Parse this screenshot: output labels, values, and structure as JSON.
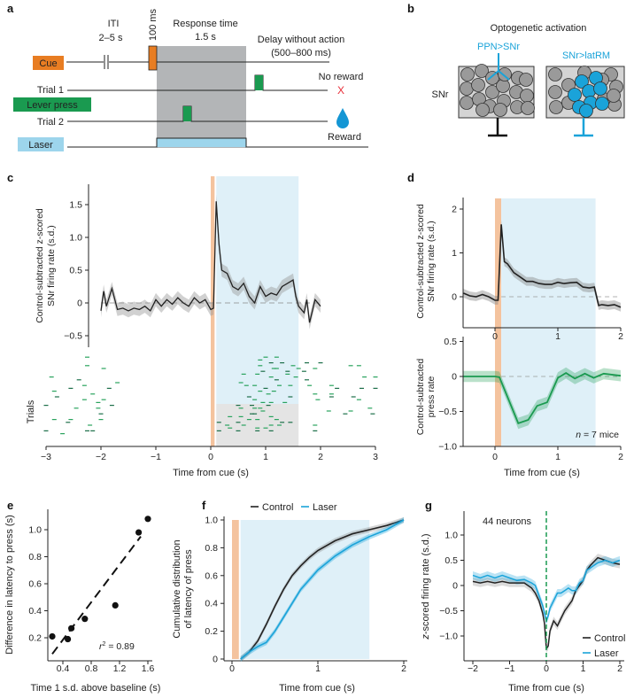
{
  "panel_labels": {
    "a": "a",
    "b": "b",
    "c": "c",
    "d": "d",
    "e": "e",
    "f": "f",
    "g": "g"
  },
  "diagram_a": {
    "iti": "ITI",
    "iti_range": "2–5 s",
    "pulse": "100 ms",
    "response_title": "Response time",
    "response_duration": "1.5 s",
    "delay_title": "Delay without action",
    "delay_range": "(500–800 ms)",
    "cue": "Cue",
    "trial1": "Trial 1",
    "lever_press": "Lever press",
    "trial2": "Trial 2",
    "laser": "Laser",
    "no_reward": "No reward",
    "no_reward_mark": "X",
    "reward": "Reward",
    "colors": {
      "cue": "#e87d22",
      "lever": "#1a9a50",
      "laser": "#9dd5ec",
      "response": "#b3b5b7",
      "reward": "#1496d4",
      "no_reward": "#e8303a"
    }
  },
  "diagram_b": {
    "title": "Optogenetic activation",
    "left_label": "PPN>SNr",
    "right_label": "SNr>latRM",
    "region": "SNr",
    "colors": {
      "neuron": "#9a9a9a",
      "activated": "#1aa3d9",
      "box": "#d4d4d4"
    }
  },
  "colors": {
    "cue_window": "#f4c39e",
    "laser_window": "#dff0f8",
    "no_laser_window": "#e4e4e4",
    "control": "#222222",
    "laser": "#1aa3d9",
    "press": "#1a9a50"
  },
  "chart_data": [
    {
      "id": "c_top",
      "type": "line",
      "ylabel": [
        "Control-subtracted z-scored",
        "SNr firing rate (s.d.)"
      ],
      "ylim": [
        -0.7,
        1.8
      ],
      "yticks": [
        -0.5,
        0,
        0.5,
        1.0,
        1.5
      ],
      "cue_window": [
        0,
        0.07
      ],
      "laser_window": [
        0.1,
        1.6
      ],
      "x": [
        -2.0,
        -1.95,
        -1.9,
        -1.8,
        -1.7,
        -1.6,
        -1.5,
        -1.4,
        -1.3,
        -1.2,
        -1.1,
        -1.0,
        -0.9,
        -0.8,
        -0.7,
        -0.6,
        -0.5,
        -0.4,
        -0.3,
        -0.2,
        -0.1,
        0.0,
        0.05,
        0.1,
        0.15,
        0.2,
        0.3,
        0.4,
        0.5,
        0.6,
        0.7,
        0.8,
        0.9,
        1.0,
        1.1,
        1.2,
        1.3,
        1.4,
        1.5,
        1.55,
        1.6,
        1.7,
        1.75,
        1.8,
        1.9,
        2.0
      ],
      "y": [
        -0.12,
        0.18,
        -0.05,
        0.22,
        -0.1,
        -0.08,
        -0.12,
        -0.08,
        -0.1,
        -0.05,
        -0.12,
        0.05,
        -0.05,
        0.05,
        -0.02,
        0.08,
        0.0,
        -0.05,
        0.08,
        0.0,
        0.05,
        -0.1,
        -0.08,
        1.55,
        0.9,
        0.5,
        0.45,
        0.25,
        0.2,
        0.3,
        0.1,
        0.0,
        0.25,
        0.1,
        0.15,
        0.12,
        0.25,
        0.3,
        0.35,
        0.1,
        -0.05,
        -0.15,
        0.05,
        -0.3,
        0.05,
        -0.05
      ]
    },
    {
      "id": "c_raster",
      "type": "raster",
      "ylabel": "Trials",
      "xlabel": "Time from cue (s)",
      "xlim": [
        -3,
        3
      ],
      "xticks": [
        "−3",
        "−2",
        "−1",
        "0",
        "1",
        "2",
        "3"
      ],
      "xtick_values": [
        -3,
        -2,
        -1,
        0,
        1,
        2,
        3
      ],
      "laser_trials": [
        1,
        17
      ],
      "no_laser_trials": [
        18,
        30
      ],
      "presses": [
        [
          -2.25,
          1
        ],
        [
          -2.25,
          4
        ],
        [
          -1.95,
          5
        ],
        [
          -2.9,
          8
        ],
        [
          -2.4,
          9
        ],
        [
          -1.7,
          10
        ],
        [
          -2.3,
          11
        ],
        [
          -2.55,
          12
        ],
        [
          -1.85,
          12
        ],
        [
          -2.85,
          13
        ],
        [
          -2.15,
          14
        ],
        [
          -2.8,
          15
        ],
        [
          -2.3,
          16
        ],
        [
          -2.05,
          17
        ],
        [
          -1.95,
          16
        ],
        [
          -3.0,
          18
        ],
        [
          -2.45,
          19
        ],
        [
          -2.05,
          19
        ],
        [
          -1.8,
          18
        ],
        [
          -2.0,
          21
        ],
        [
          -2.85,
          23
        ],
        [
          -2.55,
          23
        ],
        [
          -2.0,
          23
        ],
        [
          -2.6,
          24
        ],
        [
          -2.2,
          25
        ],
        [
          -3.0,
          27
        ],
        [
          -2.25,
          27
        ],
        [
          -2.15,
          27
        ],
        [
          -2.7,
          28
        ],
        [
          1.0,
          1
        ],
        [
          1.2,
          1
        ],
        [
          0.9,
          2
        ],
        [
          1.1,
          3
        ],
        [
          1.3,
          3
        ],
        [
          0.9,
          4
        ],
        [
          1.5,
          4
        ],
        [
          1.75,
          3
        ],
        [
          2.0,
          3
        ],
        [
          2.55,
          4
        ],
        [
          2.7,
          4
        ],
        [
          1.2,
          5
        ],
        [
          1.15,
          5
        ],
        [
          0.95,
          6
        ],
        [
          1.4,
          6
        ],
        [
          1.6,
          5
        ],
        [
          1.7,
          6
        ],
        [
          1.9,
          5
        ],
        [
          0.6,
          7
        ],
        [
          0.85,
          7
        ],
        [
          1.1,
          8
        ],
        [
          1.4,
          7
        ],
        [
          1.2,
          9
        ],
        [
          1.55,
          8
        ],
        [
          1.75,
          9
        ],
        [
          2.8,
          8
        ],
        [
          3.0,
          8
        ],
        [
          0.55,
          10
        ],
        [
          0.65,
          11
        ],
        [
          0.8,
          11
        ],
        [
          1.0,
          12
        ],
        [
          1.25,
          11
        ],
        [
          1.45,
          11
        ],
        [
          1.8,
          11
        ],
        [
          2.2,
          11
        ],
        [
          2.3,
          12
        ],
        [
          2.75,
          12
        ],
        [
          3.0,
          12
        ],
        [
          0.9,
          13
        ],
        [
          1.05,
          14
        ],
        [
          1.15,
          13
        ],
        [
          1.9,
          14
        ],
        [
          2.2,
          14
        ],
        [
          2.6,
          15
        ],
        [
          0.7,
          15
        ],
        [
          0.8,
          16
        ],
        [
          1.45,
          15
        ],
        [
          1.95,
          16
        ],
        [
          2.2,
          15
        ],
        [
          2.7,
          16
        ],
        [
          0.95,
          17
        ],
        [
          1.1,
          17
        ],
        [
          1.35,
          17
        ],
        [
          0.5,
          18
        ],
        [
          0.75,
          18
        ],
        [
          0.8,
          19
        ],
        [
          0.55,
          19
        ],
        [
          0.9,
          19
        ],
        [
          1.05,
          18
        ],
        [
          2.15,
          20
        ],
        [
          2.55,
          20
        ],
        [
          2.9,
          19
        ],
        [
          0.8,
          21
        ],
        [
          0.95,
          20
        ],
        [
          0.35,
          22
        ],
        [
          0.55,
          22
        ],
        [
          0.75,
          21
        ],
        [
          1.1,
          22
        ],
        [
          2.45,
          21
        ],
        [
          2.95,
          21
        ],
        [
          0.15,
          24
        ],
        [
          0.5,
          24
        ],
        [
          0.7,
          23
        ],
        [
          0.85,
          23
        ],
        [
          1.2,
          23
        ],
        [
          0.3,
          25
        ],
        [
          0.6,
          25
        ],
        [
          0.85,
          26
        ],
        [
          1.1,
          25
        ],
        [
          1.3,
          24
        ],
        [
          1.45,
          24
        ],
        [
          1.9,
          25
        ],
        [
          0.15,
          27
        ],
        [
          0.35,
          26
        ],
        [
          0.5,
          27
        ],
        [
          0.85,
          27
        ],
        [
          1.0,
          26
        ],
        [
          1.1,
          27
        ],
        [
          1.25,
          25
        ],
        [
          1.9,
          27
        ]
      ]
    },
    {
      "id": "d_top",
      "type": "line",
      "ylabel": [
        "Control-subtracted z-scored",
        "SNr firing rate (s.d.)"
      ],
      "xlim": [
        -0.5,
        2
      ],
      "ylim": [
        -0.7,
        2.3
      ],
      "yticks": [
        0,
        1,
        2
      ],
      "xticks": [
        "0",
        "1",
        "2"
      ],
      "xtick_values": [
        0,
        1,
        2
      ],
      "cue_window": [
        0,
        0.1
      ],
      "laser_window": [
        0.1,
        1.6
      ],
      "x": [
        -0.5,
        -0.4,
        -0.3,
        -0.2,
        -0.1,
        0.0,
        0.05,
        0.1,
        0.15,
        0.2,
        0.3,
        0.4,
        0.5,
        0.6,
        0.7,
        0.8,
        0.9,
        1.0,
        1.1,
        1.2,
        1.3,
        1.4,
        1.5,
        1.58,
        1.65,
        1.7,
        1.8,
        1.9,
        2.0
      ],
      "y": [
        0.08,
        0.02,
        0.0,
        0.05,
        0.0,
        -0.08,
        -0.08,
        1.65,
        0.8,
        0.75,
        0.55,
        0.45,
        0.35,
        0.35,
        0.3,
        0.28,
        0.28,
        0.33,
        0.3,
        0.32,
        0.33,
        0.22,
        0.2,
        0.22,
        -0.2,
        -0.18,
        -0.2,
        -0.18,
        -0.24
      ]
    },
    {
      "id": "d_bottom",
      "type": "line",
      "ylabel": [
        "Control-subtracted",
        "press rate"
      ],
      "xlabel": "Time from cue (s)",
      "xlim": [
        -0.5,
        2
      ],
      "ylim": [
        -1.0,
        0.55
      ],
      "yticks": [
        "−1.0",
        "−0.5",
        "0",
        "0.5"
      ],
      "ytick_values": [
        -1.0,
        -0.5,
        0,
        0.5
      ],
      "xticks": [
        "0",
        "1",
        "2"
      ],
      "xtick_values": [
        0,
        1,
        2
      ],
      "annotation_n": "n",
      "annotation_rest": " = 7 mice",
      "x": [
        -0.5,
        0,
        0.07,
        0.37,
        0.53,
        0.67,
        0.83,
        1.0,
        1.13,
        1.27,
        1.43,
        1.57,
        1.73,
        2.0
      ],
      "y": [
        0,
        0,
        -0.01,
        -0.67,
        -0.62,
        -0.42,
        -0.37,
        -0.02,
        0.05,
        -0.03,
        0.04,
        -0.02,
        0.04,
        0.01
      ]
    },
    {
      "id": "e",
      "type": "scatter",
      "xlabel": "Time 1 s.d. above baseline (s)",
      "ylabel": "Difference in latency to press (s)",
      "xticks": [
        "0.4",
        "0.8",
        "1.2",
        "1.6"
      ],
      "xtick_values": [
        0.4,
        0.8,
        1.2,
        1.6
      ],
      "yticks": [
        "0.2",
        "0.4",
        "0.6",
        "0.8",
        "1.0"
      ],
      "ytick_values": [
        0.2,
        0.4,
        0.6,
        0.8,
        1.0
      ],
      "points": [
        [
          0.25,
          0.21
        ],
        [
          0.47,
          0.19
        ],
        [
          0.52,
          0.27
        ],
        [
          0.71,
          0.34
        ],
        [
          1.14,
          0.44
        ],
        [
          1.47,
          0.98
        ],
        [
          1.6,
          1.08
        ]
      ],
      "fit_line": [
        [
          0.25,
          0.08
        ],
        [
          1.5,
          0.95
        ]
      ],
      "annotation_r": "r",
      "annotation_sup": "2",
      "annotation_value": " = 0.89"
    },
    {
      "id": "f",
      "type": "line",
      "xlabel": "Time from cue (s)",
      "ylabel": [
        "Cumulative distribution",
        "of latency of press"
      ],
      "xlim": [
        0,
        2
      ],
      "ylim": [
        0,
        1.0
      ],
      "xticks": [
        "0",
        "1",
        "2"
      ],
      "xtick_values": [
        0,
        1,
        2
      ],
      "yticks": [
        "0",
        "0.2",
        "0.4",
        "0.6",
        "0.8",
        "1.0"
      ],
      "ytick_values": [
        0,
        0.2,
        0.4,
        0.6,
        0.8,
        1.0
      ],
      "cue_window": [
        0,
        0.08
      ],
      "laser_window": [
        0.1,
        1.6
      ],
      "legend": "top",
      "series": [
        {
          "name": "Control",
          "x": [
            0.1,
            0.2,
            0.3,
            0.4,
            0.5,
            0.6,
            0.7,
            0.8,
            0.9,
            1.0,
            1.2,
            1.4,
            1.6,
            1.8,
            2.0
          ],
          "y": [
            0,
            0.05,
            0.13,
            0.25,
            0.38,
            0.5,
            0.6,
            0.67,
            0.73,
            0.78,
            0.85,
            0.9,
            0.93,
            0.96,
            1.0
          ]
        },
        {
          "name": "Laser",
          "x": [
            0.1,
            0.2,
            0.3,
            0.4,
            0.5,
            0.6,
            0.7,
            0.8,
            0.9,
            1.0,
            1.2,
            1.4,
            1.6,
            1.8,
            2.0
          ],
          "y": [
            0,
            0.05,
            0.09,
            0.12,
            0.2,
            0.3,
            0.4,
            0.5,
            0.57,
            0.64,
            0.74,
            0.82,
            0.88,
            0.93,
            1.0
          ]
        }
      ]
    },
    {
      "id": "g",
      "type": "line",
      "xlabel": "Time from cue (s)",
      "ylabel_italic": "z",
      "ylabel_rest": "-scored firing rate (s.d.)",
      "xlim": [
        -2,
        2
      ],
      "ylim": [
        -1.5,
        1.5
      ],
      "xticks": [
        "−2",
        "−1",
        "0",
        "1",
        "2"
      ],
      "xtick_values": [
        -2,
        -1,
        0,
        1,
        2
      ],
      "yticks": [
        "−1.0",
        "−0.5",
        "0",
        "0.5",
        "1.0"
      ],
      "ytick_values": [
        -1.0,
        -0.5,
        0,
        0.5,
        1.0
      ],
      "annotation": "44 neurons",
      "legend": "bottom-right",
      "series": [
        {
          "name": "Control",
          "x": [
            -2,
            -1.8,
            -1.6,
            -1.4,
            -1.2,
            -1.0,
            -0.8,
            -0.6,
            -0.4,
            -0.3,
            -0.2,
            -0.1,
            -0.05,
            0,
            0.05,
            0.1,
            0.2,
            0.3,
            0.4,
            0.5,
            0.6,
            0.7,
            0.8,
            0.9,
            1.0,
            1.1,
            1.2,
            1.4,
            1.6,
            1.8,
            2.0
          ],
          "y": [
            0.08,
            0.05,
            0.08,
            0.05,
            0.08,
            0.05,
            0.05,
            0.05,
            -0.05,
            -0.15,
            -0.3,
            -0.55,
            -0.75,
            -1.25,
            -1.2,
            -0.9,
            -0.7,
            -0.8,
            -0.65,
            -0.5,
            -0.4,
            -0.3,
            -0.1,
            0.0,
            0.1,
            0.3,
            0.4,
            0.55,
            0.5,
            0.45,
            0.42
          ]
        },
        {
          "name": "Laser",
          "x": [
            -2,
            -1.8,
            -1.6,
            -1.4,
            -1.2,
            -1.0,
            -0.8,
            -0.6,
            -0.4,
            -0.3,
            -0.2,
            -0.1,
            0,
            0.05,
            0.1,
            0.2,
            0.3,
            0.4,
            0.5,
            0.6,
            0.7,
            0.8,
            0.9,
            1.0,
            1.1,
            1.2,
            1.4,
            1.6,
            1.8,
            2.0
          ],
          "y": [
            0.2,
            0.15,
            0.2,
            0.15,
            0.2,
            0.15,
            0.1,
            0.12,
            0.05,
            0.0,
            -0.2,
            -0.4,
            -0.7,
            -0.6,
            -0.45,
            -0.3,
            -0.15,
            -0.15,
            -0.1,
            -0.05,
            -0.1,
            -0.1,
            0.05,
            0.1,
            0.3,
            0.35,
            0.45,
            0.5,
            0.45,
            0.5
          ]
        }
      ]
    }
  ]
}
